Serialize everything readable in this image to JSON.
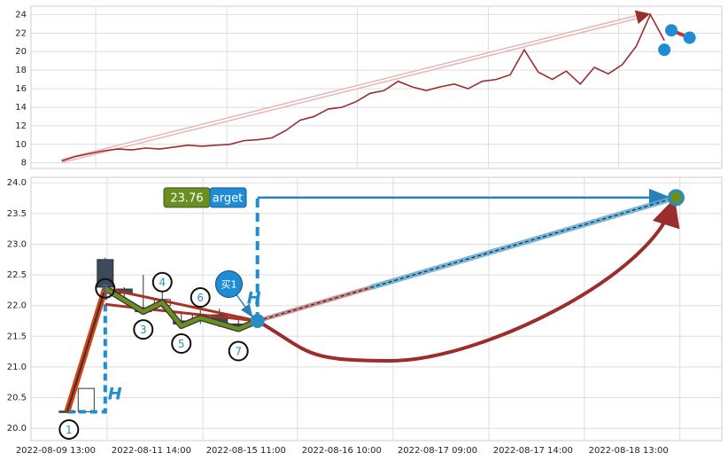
{
  "chart_data": [
    {
      "type": "line",
      "ylim": [
        7.4,
        24.9
      ],
      "yticks": [
        8,
        10,
        12,
        14,
        16,
        18,
        20,
        22,
        24
      ],
      "xlim": [
        -2.2,
        47.1
      ],
      "xticks": [
        2.42,
        11.78,
        21.08,
        30.44,
        39.74
      ],
      "grid": true,
      "color": "#9b2d2d",
      "values": [
        8.2,
        8.7,
        9.0,
        9.3,
        9.5,
        9.4,
        9.6,
        9.5,
        9.7,
        9.9,
        9.8,
        9.9,
        10.0,
        10.4,
        10.5,
        10.7,
        11.5,
        12.6,
        13.0,
        13.8,
        14.0,
        14.6,
        15.5,
        15.8,
        16.8,
        16.2,
        15.8,
        16.2,
        16.5,
        16.0,
        16.8,
        17.0,
        17.5,
        20.2,
        17.8,
        17.0,
        17.9,
        16.5,
        18.3,
        17.6,
        18.6,
        20.6,
        24.0,
        21.2
      ],
      "markers": {
        "x": [
          43.0,
          43.5,
          44.8
        ],
        "y": [
          20.2,
          22.3,
          21.5
        ],
        "color": "#1f8dd6"
      }
    },
    {
      "type": "candlestick",
      "ylim": [
        19.8,
        24.09
      ],
      "yticks": [
        {
          "value": 20,
          "label": "20.0"
        },
        {
          "value": 20.5,
          "label": "20.5"
        },
        {
          "value": 21,
          "label": "21.0"
        },
        {
          "value": 21.5,
          "label": "21.5"
        },
        {
          "value": 22,
          "label": "22.0"
        },
        {
          "value": 22.5,
          "label": "22.5"
        },
        {
          "value": 23,
          "label": "23.0"
        },
        {
          "value": 23.5,
          "label": "23.5"
        },
        {
          "value": 24,
          "label": "24.0"
        }
      ],
      "xlim": [
        -1.9,
        34.4
      ],
      "xticks": [
        {
          "value": 2.1,
          "label": "2022-08-09 13:00"
        },
        {
          "value": 7.13,
          "label": "2022-08-11 14:00"
        },
        {
          "value": 12.1,
          "label": "2022-08-15 11:00"
        },
        {
          "value": 17.13,
          "label": "2022-08-16 10:00"
        },
        {
          "value": 22.16,
          "label": "2022-08-17 09:00"
        },
        {
          "value": 27.18,
          "label": "2022-08-17 14:00"
        },
        {
          "value": 32.2,
          "label": "2022-08-18 13:00"
        }
      ],
      "grid": true,
      "candles": {
        "x": [
          0,
          1,
          2,
          3,
          4,
          5,
          6,
          7,
          8,
          9
        ],
        "open": [
          20.28,
          20.27,
          22.75,
          22.27,
          21.95,
          22.0,
          21.75,
          21.8,
          21.85,
          21.7
        ],
        "high": [
          20.29,
          20.65,
          22.78,
          22.3,
          22.5,
          22.3,
          21.9,
          22.0,
          21.95,
          21.8
        ],
        "low": [
          20.27,
          20.27,
          22.2,
          22.1,
          21.85,
          21.95,
          21.65,
          21.7,
          21.65,
          21.6
        ],
        "close": [
          20.27,
          20.65,
          22.3,
          22.2,
          21.9,
          22.1,
          21.7,
          21.85,
          21.7,
          21.65
        ]
      },
      "zigzag": {
        "x": [
          0,
          2,
          4,
          5,
          6,
          7,
          9,
          10
        ],
        "y": [
          20.27,
          22.28,
          21.9,
          22.05,
          21.67,
          21.8,
          21.62,
          21.75
        ],
        "labels": [
          "1",
          "2",
          "3",
          "4",
          "5",
          "6",
          "7",
          null
        ]
      },
      "trend_lines": [
        {
          "x": [
            2,
            10
          ],
          "y": [
            22.28,
            21.75
          ]
        },
        {
          "x": [
            2,
            10
          ],
          "y": [
            22.02,
            21.75
          ]
        }
      ],
      "curve": {
        "x": [
          10,
          17,
          32
        ],
        "y": [
          21.75,
          21.1,
          23.76
        ]
      },
      "target": {
        "x": 32,
        "y": 23.76,
        "label": "arget"
      },
      "pivot_label": "H",
      "buy": {
        "x": 8.5,
        "y": 22.35,
        "label": "买1"
      }
    }
  ]
}
